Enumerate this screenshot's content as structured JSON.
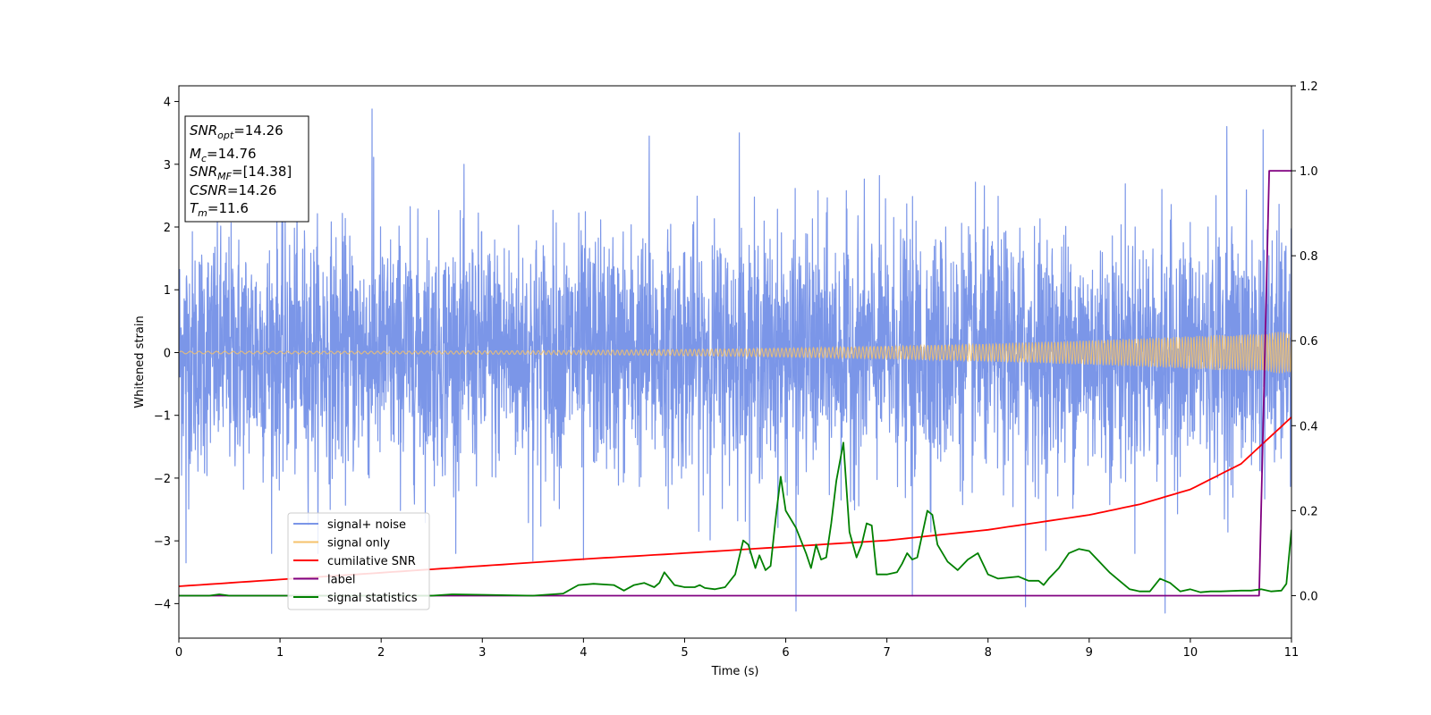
{
  "chart_data": {
    "type": "line",
    "xlabel": "Time (s)",
    "ylabel": "Whitened strain",
    "xlim": [
      0,
      11
    ],
    "ylim": [
      -4.55,
      4.25
    ],
    "y2lim": [
      -0.1,
      1.2
    ],
    "xticks": [
      0,
      1,
      2,
      3,
      4,
      5,
      6,
      7,
      8,
      9,
      10,
      11
    ],
    "yticks": [
      -4,
      -3,
      -2,
      -1,
      0,
      1,
      2,
      3,
      4
    ],
    "yticks_labels": [
      "−4",
      "−3",
      "−2",
      "−1",
      "0",
      "1",
      "2",
      "3",
      "4"
    ],
    "y2ticks": [
      0.0,
      0.2,
      0.4,
      0.6,
      0.8,
      1.0,
      1.2
    ],
    "y2ticks_labels": [
      "0.0",
      "0.2",
      "0.4",
      "0.6",
      "0.8",
      "1.0",
      "1.2"
    ],
    "grid": false,
    "legend_position": "lower-left",
    "info_box": {
      "position": "top-left",
      "lines": [
        {
          "sym": "SNR",
          "sub": "opt",
          "val": "=14.26"
        },
        {
          "sym": "M",
          "sub": "c",
          "val": "=14.76"
        },
        {
          "sym": "SNR",
          "sub": "MF",
          "val": "=[14.38]"
        },
        {
          "sym": "CSNR",
          "sub": "",
          "val": "=14.26"
        },
        {
          "sym": "T",
          "sub": "m",
          "val": "=11.6"
        }
      ]
    },
    "series": [
      {
        "name": "signal+ noise",
        "color": "#7b96e8",
        "axis": "left",
        "kind": "noise",
        "envelope_y": [
          -3.3,
          3.9
        ],
        "spikes": [
          {
            "x": 1.91,
            "y": 3.88
          },
          {
            "x": 6.1,
            "y": -4.12
          },
          {
            "x": 9.75,
            "y": -4.15
          },
          {
            "x": 8.37,
            "y": -4.05
          },
          {
            "x": 7.25,
            "y": -3.88
          },
          {
            "x": 0.07,
            "y": -3.35
          },
          {
            "x": 10.36,
            "y": 3.6
          },
          {
            "x": 10.72,
            "y": 3.55
          },
          {
            "x": 5.54,
            "y": 3.5
          },
          {
            "x": 3.5,
            "y": -3.32
          },
          {
            "x": 4.65,
            "y": 3.45
          },
          {
            "x": 4.0,
            "y": -3.3
          }
        ]
      },
      {
        "name": "signal only",
        "color": "#f5c26b",
        "axis": "left",
        "kind": "chirp",
        "x_range": [
          0,
          11
        ],
        "amplitude_start": 0.02,
        "amplitude_end": 0.34
      },
      {
        "name": "cumilative SNR",
        "color": "#ff0000",
        "axis": "right",
        "x": [
          0,
          1,
          2,
          3,
          4,
          5,
          6,
          7,
          8,
          9,
          9.5,
          10,
          10.5,
          11
        ],
        "y": [
          0.022,
          0.038,
          0.054,
          0.07,
          0.086,
          0.1,
          0.115,
          0.13,
          0.155,
          0.19,
          0.215,
          0.25,
          0.31,
          0.42
        ]
      },
      {
        "name": "label",
        "color": "#800080",
        "axis": "right",
        "x": [
          0,
          10.68,
          10.78,
          11
        ],
        "y": [
          0,
          0,
          1,
          1
        ]
      },
      {
        "name": "signal statistics",
        "color": "#008000",
        "axis": "right",
        "x": [
          0,
          0.3,
          0.4,
          0.5,
          1.0,
          1.5,
          2.0,
          2.5,
          2.7,
          3.0,
          3.5,
          3.8,
          3.95,
          4.1,
          4.3,
          4.4,
          4.5,
          4.6,
          4.7,
          4.75,
          4.8,
          4.9,
          5.0,
          5.1,
          5.15,
          5.2,
          5.3,
          5.4,
          5.5,
          5.58,
          5.63,
          5.7,
          5.74,
          5.8,
          5.85,
          5.9,
          5.95,
          6.0,
          6.1,
          6.2,
          6.25,
          6.3,
          6.35,
          6.4,
          6.45,
          6.5,
          6.57,
          6.63,
          6.7,
          6.75,
          6.8,
          6.85,
          6.9,
          7.0,
          7.1,
          7.15,
          7.2,
          7.25,
          7.3,
          7.4,
          7.45,
          7.5,
          7.6,
          7.7,
          7.8,
          7.9,
          8.0,
          8.1,
          8.3,
          8.4,
          8.5,
          8.55,
          8.6,
          8.7,
          8.8,
          8.9,
          9.0,
          9.1,
          9.2,
          9.3,
          9.4,
          9.5,
          9.6,
          9.7,
          9.8,
          9.9,
          10.0,
          10.1,
          10.2,
          10.3,
          10.5,
          10.6,
          10.7,
          10.8,
          10.9,
          10.95,
          11.0
        ],
        "y": [
          0.0,
          0.0,
          0.003,
          0.0,
          0.0,
          0.0,
          0.0,
          0.0,
          0.003,
          0.002,
          0.0,
          0.005,
          0.025,
          0.028,
          0.025,
          0.012,
          0.025,
          0.03,
          0.02,
          0.03,
          0.055,
          0.025,
          0.02,
          0.02,
          0.025,
          0.018,
          0.015,
          0.02,
          0.05,
          0.13,
          0.12,
          0.065,
          0.095,
          0.06,
          0.07,
          0.18,
          0.28,
          0.2,
          0.16,
          0.1,
          0.065,
          0.12,
          0.085,
          0.09,
          0.17,
          0.27,
          0.36,
          0.15,
          0.09,
          0.12,
          0.17,
          0.165,
          0.05,
          0.05,
          0.055,
          0.075,
          0.1,
          0.085,
          0.09,
          0.2,
          0.19,
          0.12,
          0.08,
          0.06,
          0.085,
          0.1,
          0.05,
          0.04,
          0.045,
          0.035,
          0.035,
          0.025,
          0.04,
          0.065,
          0.1,
          0.11,
          0.105,
          0.08,
          0.055,
          0.035,
          0.015,
          0.01,
          0.01,
          0.04,
          0.03,
          0.01,
          0.015,
          0.008,
          0.01,
          0.01,
          0.012,
          0.012,
          0.015,
          0.01,
          0.012,
          0.028,
          0.155
        ]
      }
    ]
  }
}
